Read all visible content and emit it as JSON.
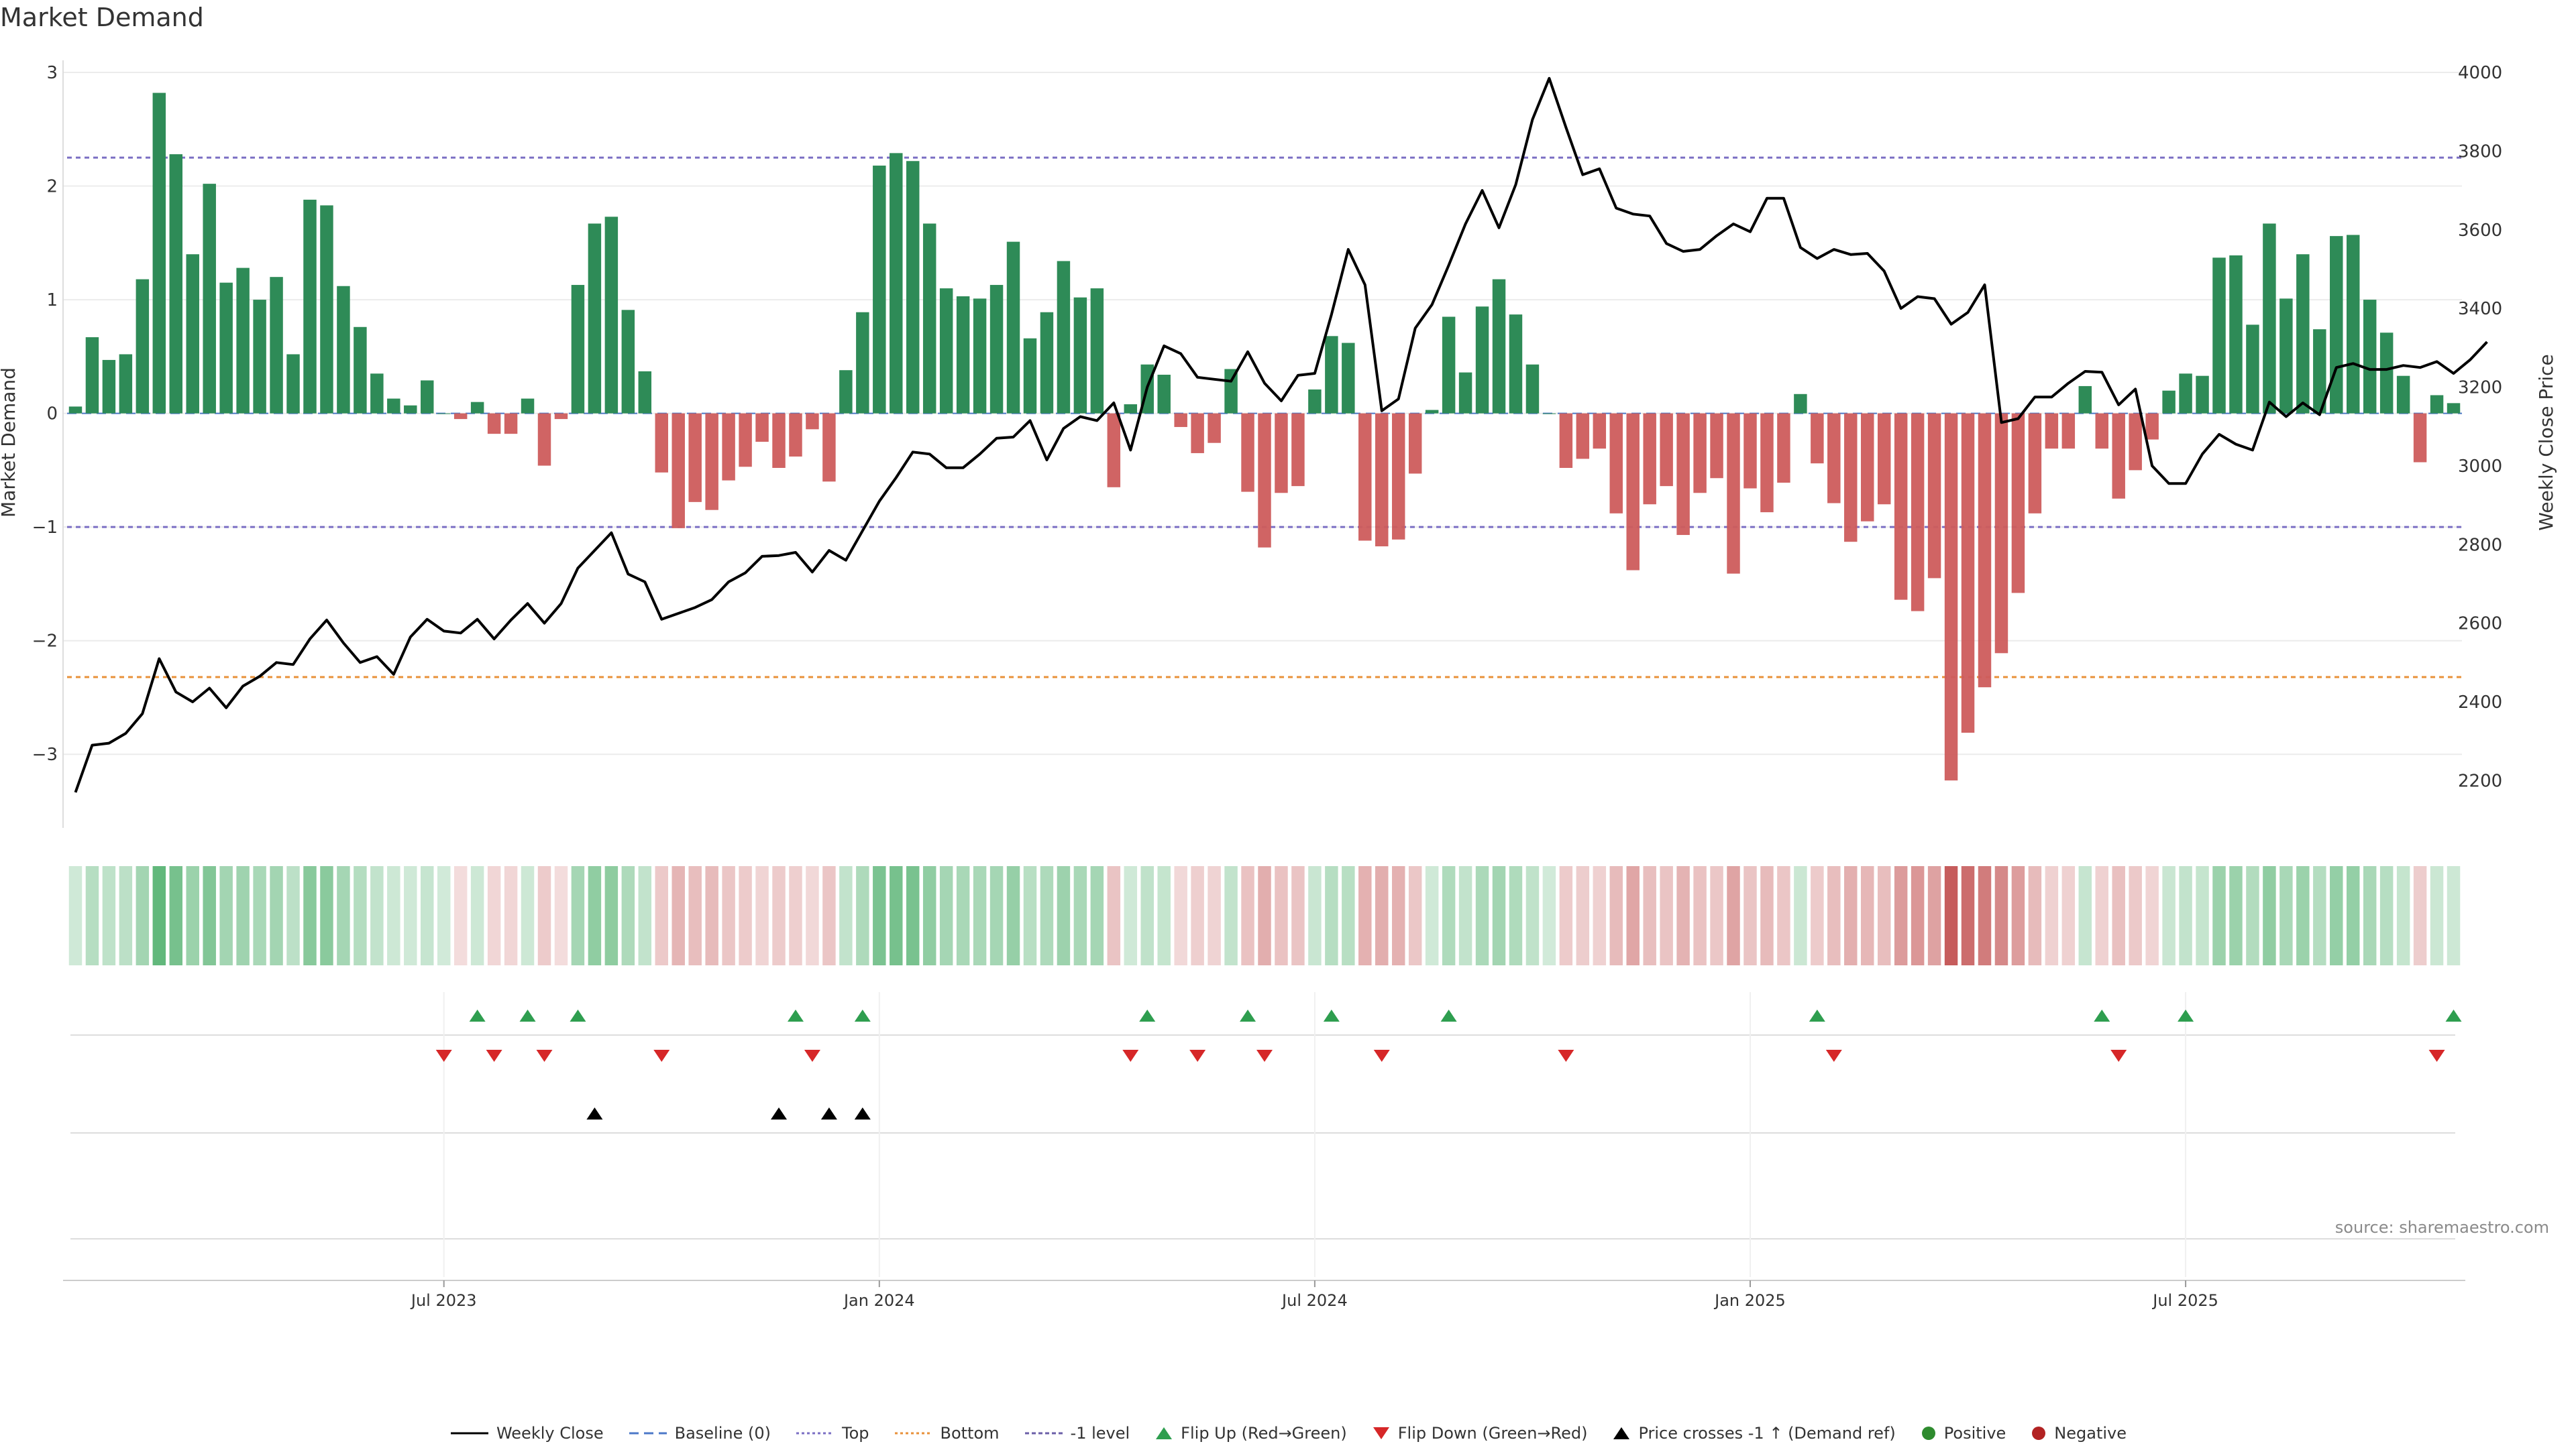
{
  "title": "Market Demand",
  "source": "source: sharemaestro.com",
  "chart_data": {
    "type": "bar",
    "title": "Market Demand",
    "ylabel_left": "Market Demand",
    "ylabel_right": "Weekly Close Price",
    "y_left_ticks": [
      3,
      2,
      1,
      0,
      -1,
      -2,
      -3
    ],
    "y_left_tick_labels": [
      "3",
      "2",
      "1",
      "0",
      "−1",
      "−2",
      "−3"
    ],
    "y_left_range": [
      -3.5,
      3.0
    ],
    "y_right_ticks": [
      2200,
      2400,
      2600,
      2800,
      3000,
      3200,
      3400,
      3600,
      3800,
      4000
    ],
    "y_right_range": [
      2170,
      4000
    ],
    "x_tick_labels": [
      "Jul 2023",
      "Jan 2024",
      "Jul 2024",
      "Jan 2025",
      "Jul 2025"
    ],
    "x_tick_weeks": [
      22,
      48,
      74,
      100,
      126
    ],
    "reference_lines": [
      {
        "name": "Top",
        "value": 2.25,
        "color": "#7b6fc4"
      },
      {
        "name": "Bottom",
        "value": -2.32,
        "color": "#e8913a"
      },
      {
        "name": "-1 level",
        "value": -1.0,
        "color": "#7b6fc4"
      }
    ],
    "series": [
      {
        "name": "Market Demand",
        "values": [
          0.06,
          0.67,
          0.47,
          0.52,
          1.18,
          2.82,
          2.28,
          1.4,
          2.02,
          1.15,
          1.28,
          1.0,
          1.2,
          0.52,
          1.88,
          1.83,
          1.12,
          0.76,
          0.35,
          0.13,
          0.07,
          0.29,
          0.0,
          -0.05,
          0.1,
          -0.18,
          -0.18,
          0.13,
          -0.46,
          -0.05,
          1.13,
          1.67,
          1.73,
          0.91,
          0.37,
          -0.52,
          -1.01,
          -0.78,
          -0.85,
          -0.59,
          -0.47,
          -0.25,
          -0.48,
          -0.38,
          -0.14,
          -0.6,
          0.38,
          0.89,
          2.18,
          2.29,
          2.22,
          1.67,
          1.1,
          1.03,
          1.01,
          1.13,
          1.51,
          0.66,
          0.89,
          1.34,
          1.02,
          1.1,
          -0.65,
          0.08,
          0.43,
          0.34,
          -0.12,
          -0.35,
          -0.26,
          0.39,
          -0.69,
          -1.18,
          -0.7,
          -0.64,
          0.21,
          0.68,
          0.62,
          -1.12,
          -1.17,
          -1.11,
          -0.53,
          0.03,
          0.85,
          0.36,
          0.94,
          1.18,
          0.87,
          0.43,
          0.0,
          -0.48,
          -0.4,
          -0.31,
          -0.88,
          -1.38,
          -0.8,
          -0.64,
          -1.07,
          -0.7,
          -0.57,
          -1.41,
          -0.66,
          -0.87,
          -0.61,
          0.17,
          -0.44,
          -0.79,
          -1.13,
          -0.95,
          -0.8,
          -1.64,
          -1.74,
          -1.45,
          -3.23,
          -2.81,
          -2.41,
          -2.11,
          -1.58,
          -0.88,
          -0.31,
          -0.31,
          0.24,
          -0.31,
          -0.75,
          -0.5,
          -0.23,
          0.2,
          0.35,
          0.33,
          1.37,
          1.39,
          0.78,
          1.67,
          1.01,
          1.4,
          0.74,
          1.56,
          1.57,
          1.0,
          0.71,
          0.33,
          -0.43,
          0.16,
          0.09
        ]
      },
      {
        "name": "Weekly Close",
        "values": [
          2170,
          2290,
          2295,
          2320,
          2370,
          2510,
          2425,
          2400,
          2435,
          2385,
          2440,
          2465,
          2500,
          2495,
          2560,
          2608,
          2550,
          2500,
          2515,
          2470,
          2565,
          2610,
          2580,
          2575,
          2610,
          2560,
          2608,
          2650,
          2600,
          2650,
          2740,
          2785,
          2830,
          2725,
          2705,
          2610,
          2625,
          2640,
          2660,
          2705,
          2728,
          2770,
          2772,
          2780,
          2730,
          2785,
          2760,
          2835,
          2910,
          2970,
          3035,
          3030,
          2995,
          2995,
          3030,
          3070,
          3073,
          3115,
          3015,
          3095,
          3125,
          3115,
          3160,
          3040,
          3200,
          3305,
          3285,
          3225,
          3220,
          3215,
          3290,
          3210,
          3165,
          3230,
          3235,
          3385,
          3550,
          3460,
          3140,
          3170,
          3350,
          3410,
          3510,
          3615,
          3700,
          3605,
          3715,
          3880,
          3985,
          3860,
          3740,
          3755,
          3655,
          3640,
          3635,
          3565,
          3545,
          3550,
          3585,
          3615,
          3595,
          3680,
          3680,
          3555,
          3527,
          3550,
          3537,
          3540,
          3495,
          3400,
          3430,
          3425,
          3360,
          3390,
          3460,
          3110,
          3120,
          3175,
          3175,
          3210,
          3240,
          3238,
          3155,
          3195,
          3000,
          2955,
          2955,
          3030,
          3080,
          3055,
          3040,
          3162,
          3125,
          3160,
          3130,
          3250,
          3260,
          3245,
          3245,
          3255,
          3250,
          3265,
          3235,
          3270,
          3315
        ]
      }
    ],
    "flip_up_weeks": [
      24,
      27,
      30,
      43,
      47,
      64,
      70,
      75,
      82,
      104,
      121,
      126,
      142
    ],
    "flip_down_weeks": [
      22,
      25,
      28,
      35,
      44,
      63,
      67,
      71,
      78,
      89,
      105,
      122,
      141
    ],
    "price_cross_weeks": [
      31,
      42,
      45,
      47
    ],
    "legend": [
      "Weekly Close",
      "Baseline (0)",
      "Top",
      "Bottom",
      "-1 level",
      "Flip Up (Red→Green)",
      "Flip Down (Green→Red)",
      "Price crosses -1 ↑ (Demand ref)",
      "Positive",
      "Negative"
    ],
    "legend_placement": "bottom-center",
    "grid": true,
    "colors": {
      "positive": "#2e8b57",
      "negative": "#cd5c5c",
      "price": "#000000",
      "up": "#2e9e4f",
      "down": "#d62728"
    }
  }
}
